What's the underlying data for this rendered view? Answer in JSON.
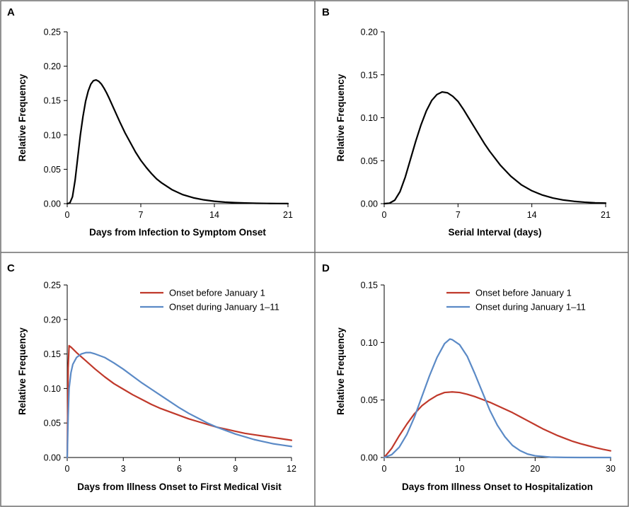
{
  "chart_data": [
    {
      "panel_label": "A",
      "type": "line",
      "xlabel": "Days from Infection to Symptom Onset",
      "ylabel": "Relative Frequency",
      "xlim": [
        0,
        21
      ],
      "ylim": [
        0,
        0.25
      ],
      "xticks": [
        0,
        7,
        14,
        21
      ],
      "xtick_labels": [
        "0",
        "7",
        "14",
        "21"
      ],
      "yticks": [
        0,
        0.05,
        0.1,
        0.15,
        0.2,
        0.25
      ],
      "ytick_labels": [
        "0.00",
        "0.05",
        "0.10",
        "0.15",
        "0.20",
        "0.25"
      ],
      "grid": false,
      "legend": null,
      "series": [
        {
          "color": "#000000",
          "x": [
            0,
            0.25,
            0.5,
            0.75,
            1,
            1.25,
            1.5,
            1.75,
            2,
            2.25,
            2.5,
            2.75,
            3,
            3.25,
            3.5,
            3.75,
            4,
            4.5,
            5,
            5.5,
            6,
            6.5,
            7,
            7.5,
            8,
            8.5,
            9,
            9.5,
            10,
            11,
            12,
            13,
            14,
            15,
            16,
            17,
            18,
            19,
            20,
            21
          ],
          "y": [
            0,
            0.001,
            0.01,
            0.034,
            0.067,
            0.1,
            0.127,
            0.149,
            0.164,
            0.174,
            0.179,
            0.18,
            0.178,
            0.174,
            0.168,
            0.161,
            0.153,
            0.136,
            0.119,
            0.103,
            0.089,
            0.075,
            0.063,
            0.053,
            0.044,
            0.036,
            0.03,
            0.025,
            0.02,
            0.013,
            0.0085,
            0.0055,
            0.0035,
            0.0022,
            0.0014,
            0.0009,
            0.0005,
            0.0003,
            0.0002,
            0.0001
          ]
        }
      ]
    },
    {
      "panel_label": "B",
      "type": "line",
      "xlabel": "Serial Interval (days)",
      "ylabel": "Relative Frequency",
      "xlim": [
        0,
        21
      ],
      "ylim": [
        0,
        0.2
      ],
      "xticks": [
        0,
        7,
        14,
        21
      ],
      "xtick_labels": [
        "0",
        "7",
        "14",
        "21"
      ],
      "yticks": [
        0,
        0.05,
        0.1,
        0.15,
        0.2
      ],
      "ytick_labels": [
        "0.00",
        "0.05",
        "0.10",
        "0.15",
        "0.20"
      ],
      "grid": false,
      "legend": null,
      "series": [
        {
          "color": "#000000",
          "x": [
            0,
            0.5,
            1,
            1.5,
            2,
            2.5,
            3,
            3.5,
            4,
            4.5,
            5,
            5.5,
            6,
            6.5,
            7,
            7.5,
            8,
            8.5,
            9,
            9.5,
            10,
            11,
            12,
            13,
            14,
            15,
            16,
            17,
            18,
            19,
            20,
            21
          ],
          "y": [
            0,
            0.0005,
            0.004,
            0.014,
            0.031,
            0.052,
            0.073,
            0.092,
            0.108,
            0.12,
            0.127,
            0.13,
            0.129,
            0.125,
            0.119,
            0.11,
            0.1,
            0.09,
            0.08,
            0.07,
            0.061,
            0.045,
            0.032,
            0.022,
            0.015,
            0.01,
            0.0065,
            0.0042,
            0.0027,
            0.0017,
            0.001,
            0.0006
          ]
        }
      ]
    },
    {
      "panel_label": "C",
      "type": "line",
      "xlabel": "Days from Illness Onset to First Medical Visit",
      "ylabel": "Relative Frequency",
      "xlim": [
        0,
        12
      ],
      "ylim": [
        0,
        0.25
      ],
      "xticks": [
        0,
        3,
        6,
        9,
        12
      ],
      "xtick_labels": [
        "0",
        "3",
        "6",
        "9",
        "12"
      ],
      "yticks": [
        0,
        0.05,
        0.1,
        0.15,
        0.2,
        0.25
      ],
      "ytick_labels": [
        "0.00",
        "0.05",
        "0.10",
        "0.15",
        "0.20",
        "0.25"
      ],
      "grid": false,
      "legend": "top-right",
      "series": [
        {
          "name": "Onset before January 1",
          "color": "#c0392b",
          "x": [
            0,
            0.05,
            0.1,
            0.2,
            0.5,
            1,
            1.5,
            2,
            2.5,
            3,
            3.5,
            4,
            4.5,
            5,
            5.5,
            6,
            6.5,
            7,
            7.5,
            8,
            8.5,
            9,
            9.5,
            10,
            10.5,
            11,
            11.5,
            12
          ],
          "y": [
            0,
            0.13,
            0.162,
            0.16,
            0.152,
            0.14,
            0.128,
            0.117,
            0.107,
            0.099,
            0.091,
            0.084,
            0.077,
            0.071,
            0.066,
            0.061,
            0.056,
            0.052,
            0.048,
            0.044,
            0.041,
            0.038,
            0.035,
            0.033,
            0.031,
            0.029,
            0.027,
            0.025
          ]
        },
        {
          "name": "Onset during January 1–11",
          "color": "#5b8ac6",
          "x": [
            0,
            0.05,
            0.1,
            0.2,
            0.3,
            0.5,
            0.75,
            1,
            1.25,
            1.5,
            2,
            2.5,
            3,
            3.5,
            4,
            4.5,
            5,
            5.5,
            6,
            6.5,
            7,
            7.5,
            8,
            8.5,
            9,
            9.5,
            10,
            10.5,
            11,
            11.5,
            12
          ],
          "y": [
            0,
            0.06,
            0.1,
            0.123,
            0.135,
            0.145,
            0.15,
            0.152,
            0.152,
            0.15,
            0.145,
            0.137,
            0.128,
            0.118,
            0.108,
            0.099,
            0.09,
            0.081,
            0.072,
            0.064,
            0.057,
            0.05,
            0.044,
            0.039,
            0.034,
            0.03,
            0.026,
            0.023,
            0.02,
            0.018,
            0.016
          ]
        }
      ]
    },
    {
      "panel_label": "D",
      "type": "line",
      "xlabel": "Days from Illness Onset to Hospitalization",
      "ylabel": "Relative Frequency",
      "xlim": [
        0,
        30
      ],
      "ylim": [
        0,
        0.15
      ],
      "xticks": [
        0,
        10,
        20,
        30
      ],
      "xtick_labels": [
        "0",
        "10",
        "20",
        "30"
      ],
      "yticks": [
        0,
        0.05,
        0.1,
        0.15
      ],
      "ytick_labels": [
        "0.00",
        "0.05",
        "0.10",
        "0.15"
      ],
      "grid": false,
      "legend": "top-right",
      "series": [
        {
          "name": "Onset before January 1",
          "color": "#c0392b",
          "x": [
            0,
            1,
            2,
            3,
            4,
            5,
            6,
            7,
            8,
            9,
            10,
            11,
            12,
            13,
            14,
            15,
            16,
            17,
            18,
            19,
            20,
            21,
            22,
            23,
            24,
            25,
            26,
            27,
            28,
            29,
            30
          ],
          "y": [
            0,
            0.008,
            0.019,
            0.029,
            0.038,
            0.045,
            0.05,
            0.054,
            0.0565,
            0.057,
            0.0565,
            0.055,
            0.053,
            0.0505,
            0.048,
            0.045,
            0.042,
            0.039,
            0.0355,
            0.032,
            0.0285,
            0.025,
            0.022,
            0.019,
            0.0165,
            0.014,
            0.012,
            0.0103,
            0.0086,
            0.0071,
            0.0058
          ]
        },
        {
          "name": "Onset during January 1–11",
          "color": "#5b8ac6",
          "x": [
            0,
            1,
            2,
            3,
            4,
            5,
            6,
            7,
            8,
            8.7,
            9,
            10,
            11,
            12,
            13,
            14,
            15,
            16,
            17,
            18,
            19,
            20,
            22,
            24,
            26,
            28,
            30
          ],
          "y": [
            0,
            0.0025,
            0.009,
            0.02,
            0.035,
            0.053,
            0.071,
            0.087,
            0.099,
            0.103,
            0.1025,
            0.098,
            0.088,
            0.073,
            0.057,
            0.041,
            0.028,
            0.018,
            0.0105,
            0.006,
            0.003,
            0.0015,
            0.0003,
            0.0001,
            0,
            0,
            0
          ]
        }
      ]
    }
  ]
}
